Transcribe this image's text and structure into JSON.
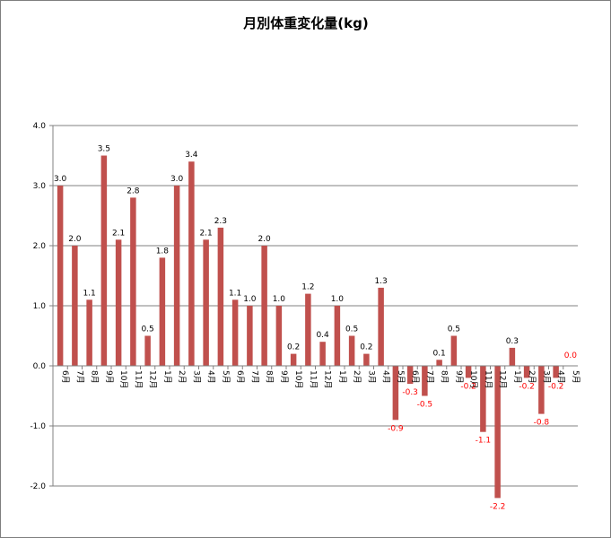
{
  "chart_data": {
    "type": "bar",
    "title": "月別体重変化量(kg)",
    "xlabel": "",
    "ylabel": "",
    "ylim": [
      -2.0,
      4.0
    ],
    "yticks": [
      "4.0",
      "3.0",
      "2.0",
      "1.0",
      "0.0",
      "-1.0",
      "-2.0"
    ],
    "grid": true,
    "legend": "none",
    "categories": [
      "6月",
      "7月",
      "8月",
      "9月",
      "10月",
      "11月",
      "12月",
      "1月",
      "2月",
      "3月",
      "4月",
      "5月",
      "6月",
      "7月",
      "8月",
      "9月",
      "10月",
      "11月",
      "12月",
      "1月",
      "2月",
      "3月",
      "4月",
      "5月",
      "6月",
      "7月",
      "8月",
      "9月",
      "10月",
      "11月",
      "12月",
      "1月",
      "2月",
      "3月",
      "4月",
      "5月"
    ],
    "values": [
      3.0,
      2.0,
      1.1,
      3.5,
      2.1,
      2.8,
      0.5,
      1.8,
      3.0,
      3.4,
      2.1,
      2.3,
      1.1,
      1.0,
      2.0,
      1.0,
      0.2,
      1.2,
      0.4,
      1.0,
      0.5,
      0.2,
      1.3,
      -0.9,
      -0.3,
      -0.5,
      0.1,
      0.5,
      -0.2,
      -1.1,
      -2.2,
      0.3,
      -0.2,
      -0.8,
      -0.2,
      0.0
    ],
    "labels": [
      "3.0",
      "2.0",
      "1.1",
      "3.5",
      "2.1",
      "2.8",
      "0.5",
      "1.8",
      "3.0",
      "3.4",
      "2.1",
      "2.3",
      "1.1",
      "1.0",
      "2.0",
      "1.0",
      "0.2",
      "1.2",
      "0.4",
      "1.0",
      "0.5",
      "0.2",
      "1.3",
      "-0.9",
      "-0.3",
      "-0.5",
      "0.1",
      "0.5",
      "-0.2",
      "-1.1",
      "-2.2",
      "0.3",
      "-0.2",
      "-0.8",
      "-0.2",
      "0.0"
    ],
    "bar_color": "#c0504d",
    "positive_label_color": "#000000",
    "negative_label_color": "#ff0000"
  }
}
